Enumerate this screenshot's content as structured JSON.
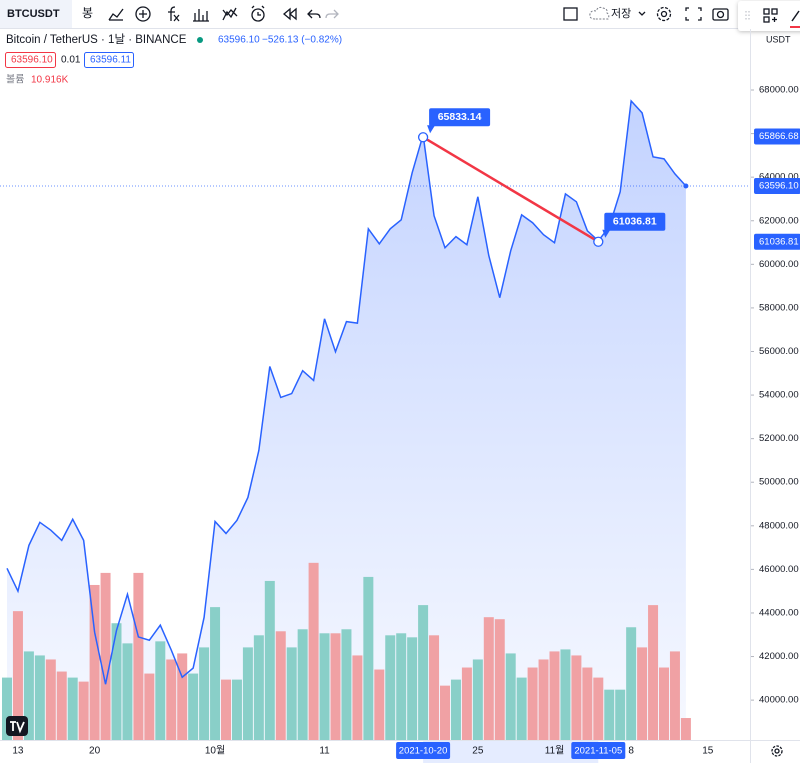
{
  "toolbar": {
    "symbol": "BTCUSDT",
    "interval": "봉",
    "save": "저장"
  },
  "legend": {
    "last": "63596.10",
    "change": "−526.13 (−0.82%)",
    "bid": "63596.10",
    "spread": "0.01",
    "ask": "63596.11"
  },
  "chart_data": {
    "type": "area",
    "title": "Bitcoin / TetherUS · 1날 · BINANCE",
    "color": "#2962ff",
    "categories": [
      null,
      "13",
      null,
      null,
      null,
      null,
      null,
      null,
      "20",
      null,
      null,
      null,
      null,
      null,
      null,
      null,
      null,
      null,
      null,
      "10월",
      null,
      null,
      null,
      null,
      null,
      null,
      null,
      null,
      null,
      "11",
      null,
      null,
      null,
      null,
      null,
      null,
      null,
      null,
      "2021-10-20",
      null,
      null,
      null,
      null,
      "25",
      null,
      null,
      null,
      null,
      null,
      null,
      "11월",
      null,
      null,
      null,
      "2021-11-05",
      null,
      null,
      "8",
      null,
      null,
      null,
      null,
      null,
      null,
      "15"
    ],
    "values": [
      46050,
      45000,
      47100,
      48160,
      47800,
      47330,
      48300,
      47330,
      43120,
      40730,
      43200,
      44860,
      42900,
      42750,
      43440,
      42300,
      41050,
      41470,
      43800,
      48200,
      47650,
      48250,
      49300,
      51460,
      55310,
      53890,
      54070,
      55120,
      54670,
      57500,
      55990,
      57370,
      57300,
      61630,
      60940,
      61630,
      62040,
      64200,
      65940,
      62230,
      60760,
      61270,
      60900,
      63100,
      60400,
      58470,
      60620,
      62270,
      61910,
      61360,
      60990,
      63230,
      62870,
      61540,
      61080,
      61720,
      63330,
      67500,
      66950,
      64930,
      64840,
      64150,
      63596.1,
      null,
      null
    ],
    "ylim": [
      38170,
      70800
    ],
    "yticks": [
      {
        "value": 40000,
        "label": "40000.00"
      },
      {
        "value": 42000,
        "label": "42000.00"
      },
      {
        "value": 44000,
        "label": "44000.00"
      },
      {
        "value": 46000,
        "label": "46000.00"
      },
      {
        "value": 48000,
        "label": "48000.00"
      },
      {
        "value": 50000,
        "label": "50000.00"
      },
      {
        "value": 52000,
        "label": "52000.00"
      },
      {
        "value": 54000,
        "label": "54000.00"
      },
      {
        "value": 56000,
        "label": "56000.00"
      },
      {
        "value": 58000,
        "label": "58000.00"
      },
      {
        "value": 60000,
        "label": "60000.00"
      },
      {
        "value": 62000,
        "label": "62000.00"
      },
      {
        "value": 64000,
        "label": "64000.00"
      },
      {
        "value": 66000,
        "label": "66000.00"
      },
      {
        "value": 68000,
        "label": "68000.00"
      }
    ],
    "y_unit": "USDT",
    "last_price": {
      "value": 63596.1,
      "label": "63596.10"
    },
    "crosshair_price": 65866.68,
    "trend_line": {
      "x": [
        "2021-10-20",
        "2021-11-05"
      ],
      "values": [
        65833.14,
        61036.81
      ],
      "color": "#f23645"
    },
    "volume": {
      "name": "볼륨",
      "last_label": "10.916K",
      "ylim": [
        0,
        150
      ],
      "up_color": "#89cfc8",
      "down_color": "#f0a1a4",
      "values": [
        31,
        64,
        44,
        42,
        40,
        34,
        31,
        29,
        77,
        83,
        58,
        48,
        83,
        33,
        49,
        40,
        43,
        33,
        46,
        66,
        30,
        30,
        46,
        52,
        79,
        54,
        46,
        55,
        88,
        53,
        53,
        55,
        42,
        81,
        35,
        52,
        53,
        51,
        67,
        52,
        27,
        30,
        36,
        40,
        61,
        60,
        43,
        31,
        36,
        40,
        44,
        45,
        42,
        36,
        31,
        25,
        25,
        56,
        46,
        67,
        36,
        44,
        10.916,
        null,
        null
      ]
    }
  }
}
